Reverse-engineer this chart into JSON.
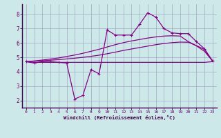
{
  "xlabel": "Windchill (Refroidissement éolien,°C)",
  "bg_color": "#cce8e8",
  "line_color": "#880088",
  "xlim": [
    -0.5,
    23.5
  ],
  "ylim": [
    1.5,
    8.7
  ],
  "xticks": [
    0,
    1,
    2,
    3,
    4,
    5,
    6,
    7,
    8,
    9,
    10,
    11,
    12,
    13,
    14,
    15,
    16,
    17,
    18,
    19,
    20,
    21,
    22,
    23
  ],
  "yticks": [
    2,
    3,
    4,
    5,
    6,
    7,
    8
  ],
  "main_y": [
    4.7,
    4.6,
    4.7,
    4.7,
    4.65,
    4.6,
    2.1,
    2.35,
    4.15,
    3.85,
    6.9,
    6.55,
    6.55,
    6.55,
    7.3,
    8.1,
    7.8,
    7.0,
    6.7,
    6.65,
    6.65,
    6.1,
    5.6,
    4.75
  ],
  "line1_y": [
    4.7,
    4.65,
    4.65,
    4.65,
    4.65,
    4.65,
    4.65,
    4.65,
    4.65,
    4.65,
    4.65,
    4.65,
    4.65,
    4.65,
    4.65,
    4.65,
    4.65,
    4.65,
    4.65,
    4.65,
    4.65,
    4.65,
    4.65,
    4.7
  ],
  "line2_y": [
    4.7,
    4.73,
    4.76,
    4.8,
    4.84,
    4.89,
    4.94,
    5.0,
    5.07,
    5.15,
    5.25,
    5.36,
    5.48,
    5.58,
    5.68,
    5.78,
    5.88,
    5.96,
    6.02,
    6.06,
    6.05,
    5.82,
    5.55,
    4.75
  ],
  "line3_y": [
    4.7,
    4.75,
    4.81,
    4.88,
    4.96,
    5.06,
    5.16,
    5.28,
    5.42,
    5.56,
    5.72,
    5.88,
    6.02,
    6.14,
    6.24,
    6.34,
    6.42,
    6.48,
    6.5,
    6.48,
    6.1,
    5.8,
    5.42,
    4.75
  ]
}
